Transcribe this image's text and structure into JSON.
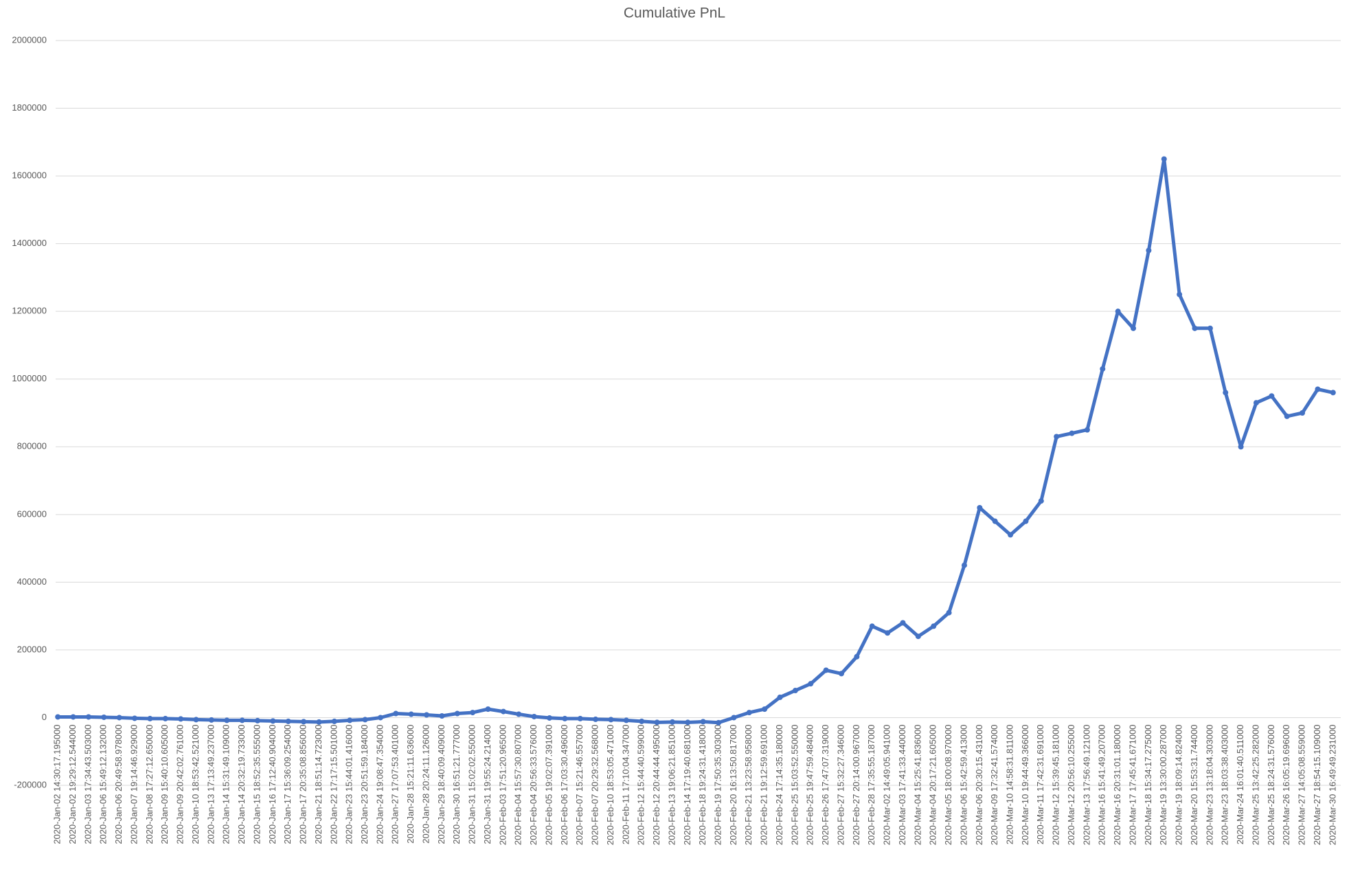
{
  "chart_data": {
    "type": "line",
    "title": "Cumulative PnL",
    "categories": [
      "2020-Jan-02 14:30:17.195000",
      "2020-Jan-02 19:29:12.544000",
      "2020-Jan-03 17:34:43.503000",
      "2020-Jan-06 15:49:12.132000",
      "2020-Jan-06 20:49:58.978000",
      "2020-Jan-07 19:14:46.929000",
      "2020-Jan-08 17:27:12.650000",
      "2020-Jan-09 15:40:10.605000",
      "2020-Jan-09 20:42:02.761000",
      "2020-Jan-10 18:53:42.521000",
      "2020-Jan-13 17:13:49.237000",
      "2020-Jan-14 15:31:49.109000",
      "2020-Jan-14 20:32:19.733000",
      "2020-Jan-15 18:52:35.555000",
      "2020-Jan-16 17:12:40.904000",
      "2020-Jan-17 15:36:09.254000",
      "2020-Jan-17 20:35:08.856000",
      "2020-Jan-21 18:51:14.723000",
      "2020-Jan-22 17:17:15.501000",
      "2020-Jan-23 15:44:01.416000",
      "2020-Jan-23 20:51:59.184000",
      "2020-Jan-24 19:08:47.354000",
      "2020-Jan-27 17:07:53.401000",
      "2020-Jan-28 15:21:11.636000",
      "2020-Jan-28 20:24:11.126000",
      "2020-Jan-29 18:40:09.409000",
      "2020-Jan-30 16:51:21.777000",
      "2020-Jan-31 15:02:02.550000",
      "2020-Jan-31 19:55:24.214000",
      "2020-Feb-03 17:51:20.965000",
      "2020-Feb-04 15:57:30.807000",
      "2020-Feb-04 20:56:33.576000",
      "2020-Feb-05 19:02:07.391000",
      "2020-Feb-06 17:03:30.496000",
      "2020-Feb-07 15:21:46.557000",
      "2020-Feb-07 20:29:32.568000",
      "2020-Feb-10 18:53:05.471000",
      "2020-Feb-11 17:10:04.347000",
      "2020-Feb-12 15:44:40.599000",
      "2020-Feb-12 20:44:44.495000",
      "2020-Feb-13 19:06:21.851000",
      "2020-Feb-14 17:19:40.681000",
      "2020-Feb-18 19:24:31.418000",
      "2020-Feb-19 17:50:35.303000",
      "2020-Feb-20 16:13:50.817000",
      "2020-Feb-21 13:23:58.958000",
      "2020-Feb-21 19:12:59.691000",
      "2020-Feb-24 17:14:35.180000",
      "2020-Feb-25 15:03:52.550000",
      "2020-Feb-25 19:47:59.484000",
      "2020-Feb-26 17:47:07.319000",
      "2020-Feb-27 15:32:27.346000",
      "2020-Feb-27 20:14:00.967000",
      "2020-Feb-28 17:35:55.187000",
      "2020-Mar-02 14:49:05.941000",
      "2020-Mar-03 17:41:33.440000",
      "2020-Mar-04 15:25:41.836000",
      "2020-Mar-04 20:17:21.605000",
      "2020-Mar-05 18:00:08.970000",
      "2020-Mar-06 15:42:59.413000",
      "2020-Mar-06 20:30:15.431000",
      "2020-Mar-09 17:32:41.574000",
      "2020-Mar-10 14:58:31.811000",
      "2020-Mar-10 19:44:49.366000",
      "2020-Mar-11 17:42:31.691000",
      "2020-Mar-12 15:39:45.181000",
      "2020-Mar-12 20:56:10.255000",
      "2020-Mar-13 17:56:49.121000",
      "2020-Mar-16 15:41:49.207000",
      "2020-Mar-16 20:31:01.180000",
      "2020-Mar-17 17:45:41.671000",
      "2020-Mar-18 15:34:17.275000",
      "2020-Mar-19 13:30:00.287000",
      "2020-Mar-19 18:09:14.824000",
      "2020-Mar-20 15:53:31.744000",
      "2020-Mar-23 13:18:04.303000",
      "2020-Mar-23 18:03:38.403000",
      "2020-Mar-24 16:01:40.511000",
      "2020-Mar-25 13:42:25.282000",
      "2020-Mar-25 18:24:31.576000",
      "2020-Mar-26 16:05:19.696000",
      "2020-Mar-27 14:05:08.559000",
      "2020-Mar-27 18:54:15.109000",
      "2020-Mar-30 16:49:49.231000"
    ],
    "values": [
      2000,
      2000,
      2000,
      1000,
      0,
      -2000,
      -3000,
      -3000,
      -4000,
      -6000,
      -7000,
      -8000,
      -8000,
      -9000,
      -10000,
      -11000,
      -12000,
      -13000,
      -11000,
      -8000,
      -6000,
      0,
      12000,
      10000,
      8000,
      5000,
      12000,
      15000,
      25000,
      18000,
      10000,
      3000,
      -1000,
      -3000,
      -3000,
      -5000,
      -6000,
      -8000,
      -11000,
      -14000,
      -13000,
      -14000,
      -12000,
      -15000,
      0,
      15000,
      25000,
      60000,
      80000,
      100000,
      140000,
      130000,
      180000,
      270000,
      250000,
      280000,
      240000,
      270000,
      310000,
      450000,
      620000,
      580000,
      540000,
      580000,
      640000,
      830000,
      840000,
      850000,
      1030000,
      1200000,
      1150000,
      1380000,
      1650000,
      1250000,
      1150000,
      1150000,
      960000,
      800000,
      930000,
      950000,
      890000,
      900000,
      970000,
      960000
    ],
    "color": "#4472c4",
    "ylim": [
      -200000,
      2000000
    ],
    "yticks": [
      -200000,
      0,
      200000,
      400000,
      600000,
      800000,
      1000000,
      1200000,
      1400000,
      1600000,
      1800000,
      2000000
    ],
    "grid": true
  }
}
